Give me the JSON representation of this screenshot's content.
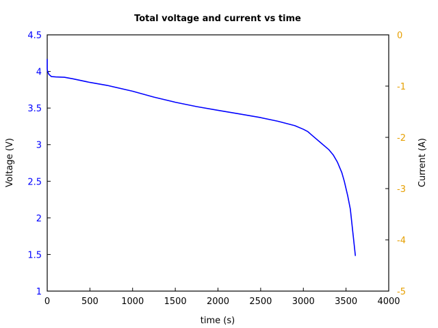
{
  "chart_data": {
    "type": "line",
    "title": "Total voltage and current vs time",
    "xlabel": "time (s)",
    "ylabel": "Voltage (V)",
    "y2label": "Current (A)",
    "xlim": [
      0,
      4000
    ],
    "ylim": [
      1,
      4.5
    ],
    "y2lim": [
      -5,
      0
    ],
    "x_ticks": [
      "0",
      "500",
      "1000",
      "1500",
      "2000",
      "2500",
      "3000",
      "3500",
      "4000"
    ],
    "y_ticks": [
      "1",
      "1.5",
      "2",
      "2.5",
      "3",
      "3.5",
      "4",
      "4.5"
    ],
    "y2_ticks": [
      "-5",
      "-4",
      "-3",
      "-2",
      "-1",
      "0"
    ],
    "grid": false,
    "series": [
      {
        "name": "Voltage",
        "axis": "left",
        "color": "#0000ff",
        "x": [
          0,
          0,
          5,
          20,
          50,
          100,
          200,
          300,
          500,
          700,
          1000,
          1250,
          1500,
          1750,
          2000,
          2250,
          2500,
          2700,
          2900,
          3000,
          3050,
          3100,
          3200,
          3300,
          3350,
          3400,
          3450,
          3480,
          3520,
          3550,
          3580,
          3610
        ],
        "values": [
          4.17,
          4.03,
          4.0,
          3.96,
          3.93,
          3.925,
          3.92,
          3.9,
          3.85,
          3.81,
          3.73,
          3.65,
          3.58,
          3.52,
          3.47,
          3.42,
          3.37,
          3.32,
          3.26,
          3.21,
          3.18,
          3.13,
          3.03,
          2.93,
          2.86,
          2.76,
          2.62,
          2.5,
          2.3,
          2.12,
          1.8,
          1.48
        ]
      }
    ]
  },
  "colors": {
    "voltage_axis": "#0000ff",
    "current_axis": "#e69f00",
    "line": "#0000ff",
    "frame": "#000000"
  }
}
